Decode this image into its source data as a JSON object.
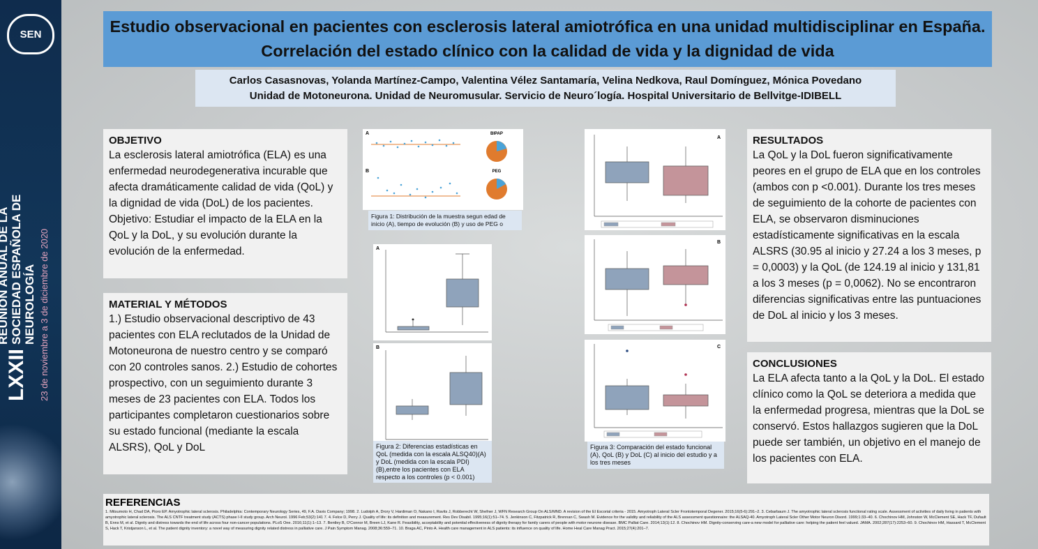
{
  "sidebar": {
    "logo": "SEN",
    "edition": "LXXII",
    "line1": "REUNIÓN ANUAL DE LA",
    "line2": "SOCIEDAD ESPAÑOLA DE NEUROLOGÍA",
    "dates": "23 de noviembre a 3 de diciembre de 2020"
  },
  "header": {
    "title": "Estudio observacional en pacientes con esclerosis lateral amiotrófica en una unidad multidisciplinar en España. Correlación del estado clínico con la calidad de vida y la dignidad de vida",
    "authors": "Carlos Casasnovas, Yolanda Martínez-Campo, Valentina Vélez Santamaría, Velina Nedkova, Raul Domínguez, Mónica Povedano",
    "affiliation": "Unidad de Motoneurona. Unidad de Neuromusular. Servicio de Neuro´logía. Hospital Universitario de Bellvitge-IDIBELL"
  },
  "objetivo": {
    "heading": "OBJETIVO",
    "text": "La esclerosis lateral amiotrófica (ELA) es una enfermedad neurodegenerativa incurable que afecta dramáticamente calidad de vida (QoL) y la dignidad de vida (DoL) de los pacientes.",
    "text2": "Objetivo:  Estudiar el impacto de la ELA en la QoL y la DoL, y su evolución durante la evolución de la enfermedad."
  },
  "metodos": {
    "heading": "MATERIAL Y MÉTODOS",
    "text": "1.) Estudio observacional descriptivo de 43 pacientes con ELA reclutados de la Unidad de Motoneurona de nuestro centro y se comparó con 20 controles sanos. 2.) Estudio de cohortes prospectivo, con un seguimiento durante 3 meses de 23 pacientes con ELA. Todos los participantes completaron cuestionarios sobre su estado funcional (mediante la escala ALSRS), QoL y DoL"
  },
  "resultados": {
    "heading": "RESULTADOS",
    "text": "La QoL y la DoL fueron significativamente peores en el grupo de ELA que en los controles (ambos con p <0.001). Durante los tres meses de seguimiento de la cohorte de pacientes con ELA, se observaron disminuciones estadísticamente significativas en la escala ALSRS (30.95 al inicio y 27.24 a los 3 meses, p = 0,0003) y la QoL (de 124.19 al inicio y 131,81 a los 3 meses (p = 0,0062). No se encontraron diferencias significativas entre las puntuaciones de DoL al inicio y los 3 meses."
  },
  "conclusiones": {
    "heading": "CONCLUSIONES",
    "text": "La ELA afecta tanto a la QoL y la DoL.  El estado clínico como la QoL se deteriora a medida que la enfermedad progresa, mientras que la DoL se conservó. Estos hallazgos sugieren que la DoL  puede ser también, un objetivo en el manejo de los pacientes con ELA."
  },
  "figures": [
    {
      "panels": [
        "A",
        "B"
      ],
      "pies": [
        "BIPAP",
        "PEG"
      ],
      "caption": "Figura 1: Distribución de la muestra segun edad de inicio (A), tiempo de evolución (B) y uso de PEG o"
    },
    {
      "panels": [
        "A",
        "B"
      ],
      "caption": "Figura 2:  Diferencias estadísticas en QoL (medida con la escala ALSQ40)(A) y DoL (medida con la escala PDI)(B),entre los pacientes con ELA respecto a los controles (p < 0.001)"
    },
    {
      "panels": [
        "A",
        "B",
        "C"
      ],
      "caption": "Figura 3: Comparación del estado funcional (A), QoL (B) y DoL (C) al inicio del estudio y a los tres meses"
    }
  ],
  "referencias": {
    "heading": "REFERENCIAS",
    "text": "1. Mitsumoto H, Chad DA, Pioro EP. Amyotrophic lateral sclerosis. Philadelphia: Contemporary Neurology Series, 49, F.A. Davis Company; 1998. 2. Ludolph A, Drory V, Hardiman O, Nakano I, Ravits J, Robberecht W, Shefner J, WFN Research Group On ALS/MND. A revision of the El Escorial criteria - 2015. Amyotroph Lateral Scler Frontotemporal Degener. 2015;16(5-6):291–2. 3. Cebarbaum J. The amyotrophic lateral sclerosis functional rating scale. Assessment of activities of daily living in patients with amyotrophic lateral sclerosis. The ALS CNTF treatment study (ACTS) phase I-II study group. Arch Neurol. 1996 Feb;53(2):141 7. 4. Felce D, Perry J. Quality of life: its definition and measurement. Res Dev Disabil. 1995;16(1):51–74. 5. Jenkinson C, Fitzpatrick R, Brennan C, Swash M. Evidence for the validity and reliability of the ALS assessment questionnaire: the ALSAQ-40. Amyotroph Lateral Scler Other Motor Neuron Disord. 1999;1:33–40. 6. Chochinov HM, Johnston W, McClement SE, Hack TF, Dufault B, Enns M, et al. Dignity and distress towards the end of life across four non-cancer populations. PLoS One. 2016;11(1):1–13. 7. Bentley B, O'Connor M, Breen LJ, Kane R. Feasibility, acceptability and potential effectiveness of dignity therapy for family carers of people with motor neurone disease. BMC Palliat Care. 2014;13(1):12. 8. Chochinov HM. Dignity-conserving care-a new model for palliative care: helping the patient feel valued. JAMA. 2002;287(17):2253–60. 9. Chochinov HM, Hassard T, McClement S, Hack T, Kristjanson L, et al. The patient dignity inventory: a novel way of measuring dignity related distress in palliative care. J Pain Symptom Manag. 2008;36:559–71. 10. Braga AC, Pinto A. Health care management in ALS patients: its influence on quality of life. Home Heal Care Manag Pract. 2015;27(4):201–7."
  }
}
